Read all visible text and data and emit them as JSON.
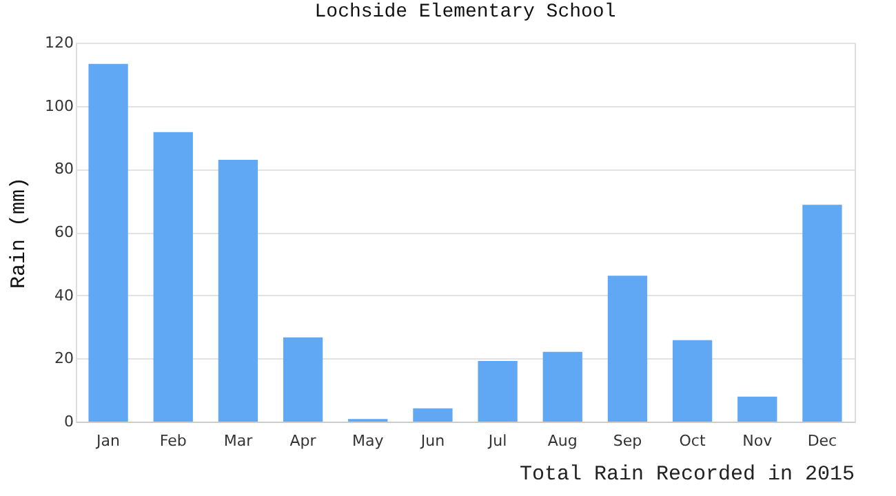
{
  "chart_data": {
    "type": "bar",
    "title": "Lochside Elementary School",
    "ylabel": "Rain (mm)",
    "annotations": [
      "Total Rain Recorded in 2015"
    ],
    "categories": [
      "Jan",
      "Feb",
      "Mar",
      "Apr",
      "May",
      "Jun",
      "Jul",
      "Aug",
      "Sep",
      "Oct",
      "Nov",
      "Dec"
    ],
    "values": [
      113.3,
      91.7,
      82.9,
      26.7,
      0.8,
      4.2,
      19.2,
      22.1,
      46.2,
      25.8,
      7.9,
      68.7
    ],
    "color": "#60a8f4",
    "ylim": [
      0,
      120
    ],
    "yticks": [
      0,
      20,
      40,
      60,
      80,
      100,
      120
    ],
    "grid": "y"
  }
}
